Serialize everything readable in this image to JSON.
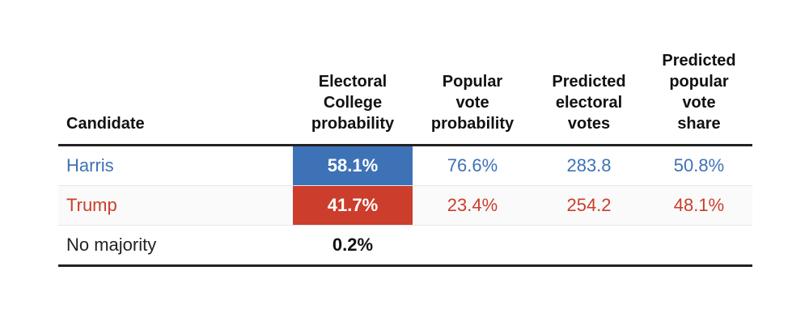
{
  "colors": {
    "harris": "#3e72b6",
    "trump": "#cc3d2b"
  },
  "headers": {
    "candidate": "Candidate",
    "ec_probability": [
      "Electoral",
      "College",
      "probability"
    ],
    "popular_probability": [
      "Popular",
      "vote",
      "probability"
    ],
    "predicted_ev": [
      "Predicted",
      "electoral",
      "votes"
    ],
    "predicted_share": [
      "Predicted",
      "popular",
      "vote",
      "share"
    ]
  },
  "rows": [
    {
      "candidate": "Harris",
      "ec_probability": "58.1%",
      "popular_probability": "76.6%",
      "predicted_ev": "283.8",
      "predicted_share": "50.8%"
    },
    {
      "candidate": "Trump",
      "ec_probability": "41.7%",
      "popular_probability": "23.4%",
      "predicted_ev": "254.2",
      "predicted_share": "48.1%"
    },
    {
      "candidate": "No majority",
      "ec_probability": "0.2%",
      "popular_probability": "",
      "predicted_ev": "",
      "predicted_share": ""
    }
  ],
  "chart_data": {
    "type": "table",
    "columns": [
      "Candidate",
      "Electoral College probability",
      "Popular vote probability",
      "Predicted electoral votes",
      "Predicted popular vote share"
    ],
    "rows": [
      [
        "Harris",
        58.1,
        76.6,
        283.8,
        50.8
      ],
      [
        "Trump",
        41.7,
        23.4,
        254.2,
        48.1
      ],
      [
        "No majority",
        0.2,
        null,
        null,
        null
      ]
    ]
  }
}
